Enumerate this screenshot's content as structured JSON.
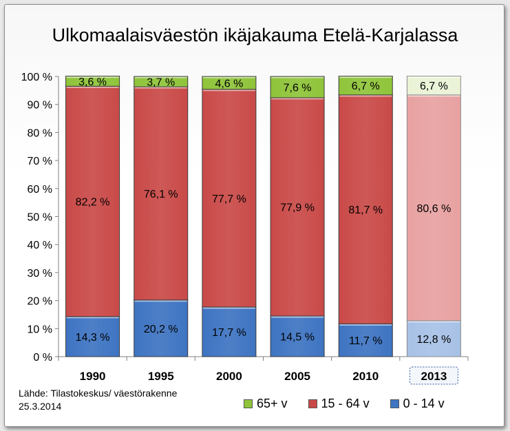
{
  "chart_data": {
    "type": "bar",
    "stacked": true,
    "title": "Ulkomaalaisväestön ikäjakauma Etelä-Karjalassa",
    "categories": [
      "1990",
      "1995",
      "2000",
      "2005",
      "2010",
      "2013"
    ],
    "highlighted_category": "2013",
    "series": [
      {
        "name": "0 - 14 v",
        "values": [
          14.3,
          20.2,
          17.7,
          14.5,
          11.7,
          12.8
        ],
        "labels": [
          "14,3 %",
          "20,2 %",
          "17,7 %",
          "14,5 %",
          "11,7 %",
          "12,8 %"
        ],
        "color": "#3e74c2",
        "faded_color": "#a7c1e6"
      },
      {
        "name": "15 - 64 v",
        "values": [
          82.2,
          76.1,
          77.7,
          77.9,
          81.7,
          80.6
        ],
        "labels": [
          "82,2 %",
          "76,1 %",
          "77,7 %",
          "77,9 %",
          "81,7 %",
          "80,6 %"
        ],
        "color": "#c94a48",
        "faded_color": "#e8a1a1"
      },
      {
        "name": "65+ v",
        "values": [
          3.6,
          3.7,
          4.6,
          7.6,
          6.7,
          6.7
        ],
        "labels": [
          "3,6 %",
          "3,7 %",
          "4,6 %",
          "7,6 %",
          "6,7 %",
          "6,7 %"
        ],
        "color": "#8fc43a",
        "faded_color": "#eaf3d6"
      }
    ],
    "yticks": [
      "0 %",
      "10 %",
      "20 %",
      "30 %",
      "40 %",
      "50 %",
      "60 %",
      "70 %",
      "80 %",
      "90 %",
      "100 %"
    ],
    "ylim": [
      0,
      100
    ],
    "grid": false,
    "legend": {
      "placement": "bottom-right",
      "order": [
        "65+ v",
        "15 - 64 v",
        "0 - 14 v"
      ]
    }
  },
  "source": {
    "line1": "Lähde: Tilastokeskus/ väestörakenne",
    "line2": "25.3.2014"
  }
}
